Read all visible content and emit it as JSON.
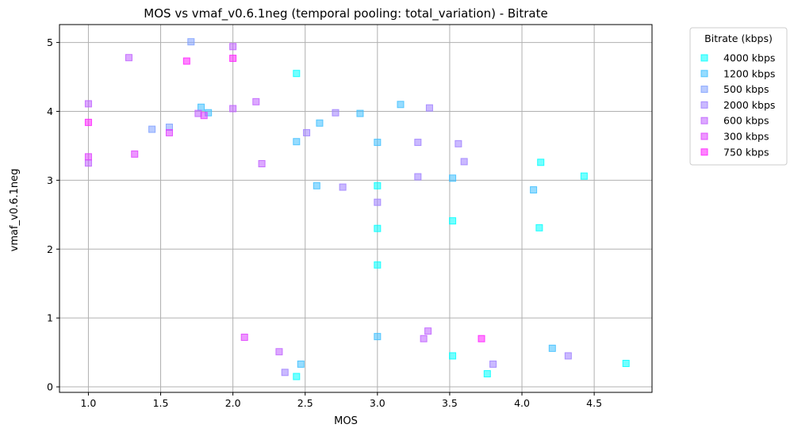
{
  "chart_data": {
    "type": "scatter",
    "title": "MOS vs vmaf_v0.6.1neg (temporal pooling: total_variation) - Bitrate",
    "xlabel": "MOS",
    "ylabel": "vmaf_v0.6.1neg",
    "xlim": [
      0.8,
      4.9
    ],
    "ylim": [
      -0.08,
      5.26
    ],
    "xticks": [
      1.0,
      1.5,
      2.0,
      2.5,
      3.0,
      3.5,
      4.0,
      4.5
    ],
    "xtick_labels": [
      "1.0",
      "1.5",
      "2.0",
      "2.5",
      "3.0",
      "3.5",
      "4.0",
      "4.5"
    ],
    "yticks": [
      0,
      1,
      2,
      3,
      4,
      5
    ],
    "ytick_labels": [
      "0",
      "1",
      "2",
      "3",
      "4",
      "5"
    ],
    "grid": true,
    "marker": "square",
    "legend": {
      "title": "Bitrate (kbps)",
      "placement": "outside-right-top"
    },
    "series": [
      {
        "name": "4000 kbps",
        "color": "#00ffff",
        "points": [
          [
            2.44,
            4.55
          ],
          [
            3.0,
            2.92
          ],
          [
            3.0,
            2.3
          ],
          [
            3.0,
            1.77
          ],
          [
            3.52,
            2.41
          ],
          [
            4.12,
            2.31
          ],
          [
            4.13,
            3.26
          ],
          [
            4.43,
            3.06
          ],
          [
            4.72,
            0.34
          ],
          [
            3.76,
            0.19
          ],
          [
            3.52,
            0.45
          ],
          [
            2.44,
            0.15
          ]
        ]
      },
      {
        "name": "1200 kbps",
        "color": "#3fc0ff",
        "points": [
          [
            1.78,
            4.06
          ],
          [
            1.83,
            3.98
          ],
          [
            2.44,
            3.56
          ],
          [
            2.58,
            2.92
          ],
          [
            2.6,
            3.83
          ],
          [
            2.88,
            3.97
          ],
          [
            3.0,
            3.55
          ],
          [
            3.16,
            4.1
          ],
          [
            3.52,
            3.03
          ],
          [
            4.08,
            2.86
          ],
          [
            4.21,
            0.56
          ],
          [
            3.0,
            0.73
          ],
          [
            2.47,
            0.33
          ]
        ]
      },
      {
        "name": "500 kbps",
        "color": "#7fa0ff",
        "points": [
          [
            1.71,
            5.01
          ],
          [
            1.56,
            3.77
          ],
          [
            1.44,
            3.74
          ]
        ]
      },
      {
        "name": "2000 kbps",
        "color": "#9f80ff",
        "points": [
          [
            2.51,
            3.69
          ],
          [
            2.71,
            3.98
          ],
          [
            2.76,
            2.9
          ],
          [
            3.0,
            2.68
          ],
          [
            3.28,
            3.05
          ],
          [
            3.28,
            3.55
          ],
          [
            3.36,
            4.05
          ],
          [
            3.56,
            3.53
          ],
          [
            3.6,
            3.27
          ],
          [
            3.8,
            0.33
          ],
          [
            4.32,
            0.45
          ],
          [
            2.36,
            0.21
          ]
        ]
      },
      {
        "name": "600 kbps",
        "color": "#bf60ff",
        "points": [
          [
            1.0,
            4.11
          ],
          [
            1.0,
            3.25
          ],
          [
            1.28,
            4.78
          ],
          [
            1.76,
            3.97
          ],
          [
            2.0,
            4.94
          ],
          [
            2.0,
            4.04
          ],
          [
            2.16,
            4.14
          ],
          [
            2.2,
            3.24
          ],
          [
            2.32,
            0.51
          ],
          [
            3.32,
            0.7
          ],
          [
            3.35,
            0.81
          ]
        ]
      },
      {
        "name": "300 kbps",
        "color": "#df40ff",
        "points": [
          [
            1.0,
            3.34
          ],
          [
            1.32,
            3.38
          ],
          [
            1.56,
            3.69
          ],
          [
            1.8,
            3.94
          ],
          [
            2.08,
            0.72
          ]
        ]
      },
      {
        "name": "750 kbps",
        "color": "#ff20ff",
        "points": [
          [
            1.0,
            3.84
          ],
          [
            1.68,
            4.73
          ],
          [
            2.0,
            4.77
          ],
          [
            3.72,
            0.7
          ]
        ]
      }
    ]
  }
}
